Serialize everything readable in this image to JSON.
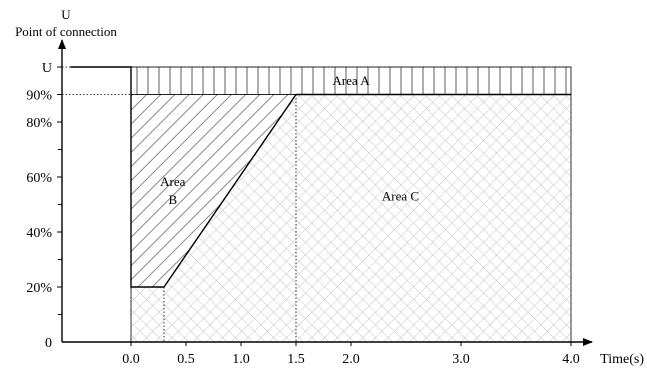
{
  "chart_data": {
    "type": "area",
    "title": "",
    "ylabel_symbol": "U",
    "ylabel": "Point of connection",
    "xlabel": "Time(s)",
    "xlim": [
      -0.55,
      4.0
    ],
    "ylim": [
      0,
      100
    ],
    "grid": false,
    "x_ticks": [
      {
        "value": 0.0,
        "label": "0.0"
      },
      {
        "value": 0.5,
        "label": "0.5"
      },
      {
        "value": 1.0,
        "label": "1.0"
      },
      {
        "value": 1.5,
        "label": "1.5"
      },
      {
        "value": 2.0,
        "label": "2.0"
      },
      {
        "value": 3.0,
        "label": "3.0"
      },
      {
        "value": 4.0,
        "label": "4.0"
      }
    ],
    "y_ticks": [
      {
        "value": 0,
        "label": "0"
      },
      {
        "value": 20,
        "label": "20%"
      },
      {
        "value": 40,
        "label": "40%"
      },
      {
        "value": 60,
        "label": "60%"
      },
      {
        "value": 80,
        "label": "80%"
      },
      {
        "value": 90,
        "label": "90%"
      },
      {
        "value": 100,
        "label": "U"
      }
    ],
    "y_minor_ticks": [
      10,
      30,
      50,
      70
    ],
    "voltage_profile": {
      "x": [
        -0.55,
        0.0,
        0.0,
        0.3,
        1.5,
        4.0
      ],
      "y": [
        100,
        100,
        20,
        20,
        90,
        90
      ]
    },
    "areas": [
      {
        "name": "Area A",
        "label_lines": [
          "Area A"
        ],
        "pattern": "vertical-lines",
        "x_range": [
          0.0,
          4.0
        ],
        "y_range": [
          90,
          100
        ],
        "label_at": {
          "x": 2.0,
          "y": 95
        }
      },
      {
        "name": "Area B",
        "label_lines": [
          "Area",
          "B"
        ],
        "pattern": "diagonal-lines",
        "label_at": {
          "x": 0.38,
          "y": 55
        }
      },
      {
        "name": "Area C",
        "label_lines": [
          "Area C"
        ],
        "pattern": "crosshatch",
        "x_range": [
          0.0,
          4.0
        ],
        "y_range": [
          0,
          90
        ],
        "label_at": {
          "x": 2.45,
          "y": 53
        }
      }
    ],
    "reference_lines": [
      {
        "orientation": "horizontal",
        "y": 100,
        "style": "dotted"
      },
      {
        "orientation": "horizontal",
        "y": 90,
        "style": "dotted"
      },
      {
        "orientation": "vertical",
        "x": 1.5,
        "style": "dotted"
      },
      {
        "orientation": "vertical",
        "x": 0.3,
        "style": "dotted"
      }
    ]
  }
}
